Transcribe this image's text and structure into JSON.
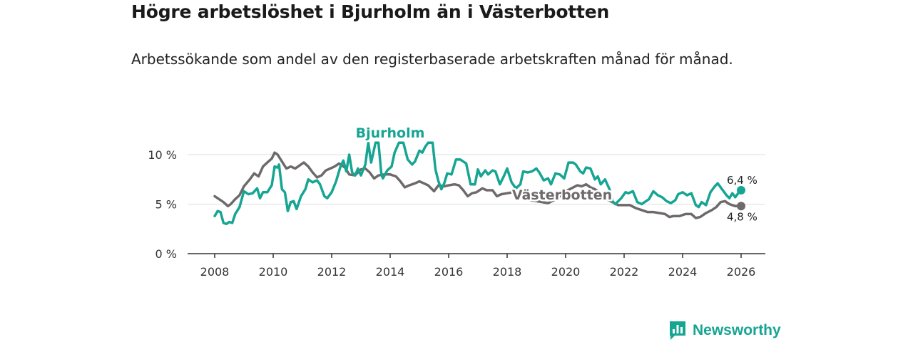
{
  "title": "Högre arbetslöshet i Bjurholm än i Västerbotten",
  "subtitle": "Arbetssökande som andel av den registerbaserade arbetskraften månad för månad.",
  "brand": {
    "name": "Newsworthy",
    "icon": "bar-chart-icon"
  },
  "colors": {
    "bjurholm": "#17a593",
    "vasterbotten": "#6e6a6b",
    "grid": "#dddddd",
    "axis": "#333333"
  },
  "chart_data": {
    "type": "line",
    "title": "Högre arbetslöshet i Bjurholm än i Västerbotten",
    "xlabel": "",
    "ylabel": "",
    "xlim": [
      2007.5,
      2026.9
    ],
    "ylim": [
      0,
      12.5
    ],
    "x_ticks": [
      2008,
      2010,
      2012,
      2014,
      2016,
      2018,
      2020,
      2022,
      2024,
      2026
    ],
    "y_ticks": [
      0,
      5,
      10
    ],
    "y_tick_labels": [
      "0 %",
      "5 %",
      "10 %"
    ],
    "grid": true,
    "series": [
      {
        "name": "Bjurholm",
        "label": "Bjurholm",
        "color": "#17a593",
        "end_label": "6,4 %",
        "points": [
          [
            2008.0,
            3.8
          ],
          [
            2008.1,
            4.3
          ],
          [
            2008.2,
            4.2
          ],
          [
            2008.3,
            3.1
          ],
          [
            2008.4,
            3.0
          ],
          [
            2008.5,
            3.2
          ],
          [
            2008.6,
            3.1
          ],
          [
            2008.7,
            4.0
          ],
          [
            2008.85,
            4.7
          ],
          [
            2009.0,
            6.3
          ],
          [
            2009.15,
            6.0
          ],
          [
            2009.3,
            6.1
          ],
          [
            2009.45,
            6.6
          ],
          [
            2009.55,
            5.6
          ],
          [
            2009.65,
            6.2
          ],
          [
            2009.8,
            6.2
          ],
          [
            2009.95,
            6.9
          ],
          [
            2010.05,
            8.8
          ],
          [
            2010.15,
            8.7
          ],
          [
            2010.2,
            9.0
          ],
          [
            2010.3,
            6.5
          ],
          [
            2010.4,
            6.2
          ],
          [
            2010.5,
            4.3
          ],
          [
            2010.6,
            5.2
          ],
          [
            2010.7,
            5.3
          ],
          [
            2010.8,
            4.5
          ],
          [
            2010.95,
            5.8
          ],
          [
            2011.1,
            6.5
          ],
          [
            2011.2,
            7.5
          ],
          [
            2011.35,
            7.2
          ],
          [
            2011.5,
            7.4
          ],
          [
            2011.6,
            7.0
          ],
          [
            2011.75,
            5.8
          ],
          [
            2011.85,
            5.6
          ],
          [
            2012.0,
            6.2
          ],
          [
            2012.15,
            7.3
          ],
          [
            2012.3,
            8.8
          ],
          [
            2012.4,
            9.4
          ],
          [
            2012.5,
            8.3
          ],
          [
            2012.6,
            10.0
          ],
          [
            2012.7,
            8.2
          ],
          [
            2012.8,
            7.9
          ],
          [
            2012.9,
            8.6
          ],
          [
            2013.0,
            7.9
          ],
          [
            2013.15,
            9.0
          ],
          [
            2013.25,
            11.2
          ],
          [
            2013.35,
            9.2
          ],
          [
            2013.5,
            11.2
          ],
          [
            2013.6,
            11.2
          ],
          [
            2013.7,
            8.0
          ],
          [
            2013.75,
            7.6
          ],
          [
            2013.9,
            8.4
          ],
          [
            2014.05,
            8.8
          ],
          [
            2014.15,
            10.2
          ],
          [
            2014.3,
            11.2
          ],
          [
            2014.45,
            11.2
          ],
          [
            2014.6,
            9.5
          ],
          [
            2014.75,
            9.0
          ],
          [
            2014.85,
            9.3
          ],
          [
            2015.0,
            10.4
          ],
          [
            2015.1,
            10.2
          ],
          [
            2015.2,
            10.8
          ],
          [
            2015.3,
            11.2
          ],
          [
            2015.45,
            11.2
          ],
          [
            2015.55,
            8.5
          ],
          [
            2015.65,
            7.3
          ],
          [
            2015.75,
            6.5
          ],
          [
            2015.85,
            7.1
          ],
          [
            2015.95,
            8.1
          ],
          [
            2016.1,
            8.0
          ],
          [
            2016.25,
            9.5
          ],
          [
            2016.4,
            9.5
          ],
          [
            2016.5,
            9.3
          ],
          [
            2016.6,
            9.1
          ],
          [
            2016.75,
            7.0
          ],
          [
            2016.9,
            7.0
          ],
          [
            2017.0,
            8.5
          ],
          [
            2017.1,
            7.8
          ],
          [
            2017.25,
            8.4
          ],
          [
            2017.35,
            8.0
          ],
          [
            2017.5,
            8.4
          ],
          [
            2017.6,
            8.3
          ],
          [
            2017.75,
            7.0
          ],
          [
            2017.9,
            7.9
          ],
          [
            2018.0,
            8.6
          ],
          [
            2018.15,
            7.2
          ],
          [
            2018.3,
            6.6
          ],
          [
            2018.45,
            7.0
          ],
          [
            2018.55,
            8.3
          ],
          [
            2018.7,
            8.2
          ],
          [
            2018.85,
            8.3
          ],
          [
            2019.0,
            8.6
          ],
          [
            2019.1,
            8.2
          ],
          [
            2019.25,
            7.4
          ],
          [
            2019.4,
            7.6
          ],
          [
            2019.5,
            7.0
          ],
          [
            2019.65,
            8.1
          ],
          [
            2019.8,
            8.0
          ],
          [
            2019.95,
            7.6
          ],
          [
            2020.1,
            9.2
          ],
          [
            2020.25,
            9.2
          ],
          [
            2020.35,
            9.0
          ],
          [
            2020.5,
            8.3
          ],
          [
            2020.6,
            8.1
          ],
          [
            2020.7,
            8.7
          ],
          [
            2020.85,
            8.6
          ],
          [
            2021.0,
            7.5
          ],
          [
            2021.1,
            7.8
          ],
          [
            2021.2,
            7.0
          ],
          [
            2021.35,
            7.5
          ],
          [
            2021.5,
            6.5
          ],
          [
            2021.6,
            5.3
          ],
          [
            2021.7,
            5.0
          ],
          [
            2021.8,
            5.3
          ],
          [
            2021.9,
            5.6
          ],
          [
            2022.05,
            6.2
          ],
          [
            2022.15,
            6.1
          ],
          [
            2022.3,
            6.3
          ],
          [
            2022.45,
            5.2
          ],
          [
            2022.6,
            5.0
          ],
          [
            2022.7,
            5.2
          ],
          [
            2022.85,
            5.5
          ],
          [
            2023.0,
            6.3
          ],
          [
            2023.15,
            5.9
          ],
          [
            2023.3,
            5.7
          ],
          [
            2023.45,
            5.3
          ],
          [
            2023.6,
            5.1
          ],
          [
            2023.75,
            5.4
          ],
          [
            2023.85,
            6.0
          ],
          [
            2024.0,
            6.2
          ],
          [
            2024.15,
            5.9
          ],
          [
            2024.3,
            6.1
          ],
          [
            2024.45,
            4.9
          ],
          [
            2024.55,
            4.7
          ],
          [
            2024.65,
            5.2
          ],
          [
            2024.8,
            4.9
          ],
          [
            2024.95,
            6.2
          ],
          [
            2025.1,
            6.8
          ],
          [
            2025.2,
            7.1
          ],
          [
            2025.35,
            6.5
          ],
          [
            2025.5,
            5.9
          ],
          [
            2025.6,
            5.6
          ],
          [
            2025.7,
            6.1
          ],
          [
            2025.8,
            5.7
          ],
          [
            2025.9,
            6.1
          ],
          [
            2026.0,
            6.4
          ]
        ]
      },
      {
        "name": "Västerbotten",
        "label": "Västerbotten",
        "color": "#6e6a6b",
        "end_label": "4,8 %",
        "points": [
          [
            2008.0,
            5.8
          ],
          [
            2008.15,
            5.5
          ],
          [
            2008.3,
            5.2
          ],
          [
            2008.45,
            4.8
          ],
          [
            2008.55,
            5.0
          ],
          [
            2008.7,
            5.5
          ],
          [
            2008.85,
            5.9
          ],
          [
            2009.0,
            6.8
          ],
          [
            2009.2,
            7.5
          ],
          [
            2009.35,
            8.1
          ],
          [
            2009.5,
            7.8
          ],
          [
            2009.65,
            8.8
          ],
          [
            2009.8,
            9.2
          ],
          [
            2009.95,
            9.6
          ],
          [
            2010.05,
            10.2
          ],
          [
            2010.15,
            10.0
          ],
          [
            2010.3,
            9.3
          ],
          [
            2010.45,
            8.6
          ],
          [
            2010.6,
            8.8
          ],
          [
            2010.75,
            8.6
          ],
          [
            2010.9,
            8.9
          ],
          [
            2011.05,
            9.2
          ],
          [
            2011.2,
            8.8
          ],
          [
            2011.35,
            8.2
          ],
          [
            2011.5,
            7.7
          ],
          [
            2011.65,
            7.9
          ],
          [
            2011.8,
            8.4
          ],
          [
            2011.95,
            8.6
          ],
          [
            2012.1,
            8.8
          ],
          [
            2012.25,
            9.1
          ],
          [
            2012.45,
            8.7
          ],
          [
            2012.6,
            8.0
          ],
          [
            2012.8,
            7.9
          ],
          [
            2013.0,
            8.5
          ],
          [
            2013.15,
            8.6
          ],
          [
            2013.3,
            8.2
          ],
          [
            2013.45,
            7.6
          ],
          [
            2013.6,
            7.9
          ],
          [
            2013.8,
            8.0
          ],
          [
            2014.0,
            8.0
          ],
          [
            2014.2,
            7.8
          ],
          [
            2014.35,
            7.3
          ],
          [
            2014.5,
            6.7
          ],
          [
            2014.65,
            6.9
          ],
          [
            2014.85,
            7.1
          ],
          [
            2015.0,
            7.3
          ],
          [
            2015.15,
            7.1
          ],
          [
            2015.3,
            6.9
          ],
          [
            2015.5,
            6.3
          ],
          [
            2015.65,
            6.9
          ],
          [
            2015.85,
            6.8
          ],
          [
            2016.0,
            6.9
          ],
          [
            2016.2,
            7.0
          ],
          [
            2016.35,
            6.9
          ],
          [
            2016.5,
            6.4
          ],
          [
            2016.65,
            5.8
          ],
          [
            2016.8,
            6.1
          ],
          [
            2016.95,
            6.2
          ],
          [
            2017.15,
            6.6
          ],
          [
            2017.3,
            6.4
          ],
          [
            2017.5,
            6.4
          ],
          [
            2017.65,
            5.8
          ],
          [
            2017.8,
            6.0
          ],
          [
            2018.0,
            6.1
          ],
          [
            2018.2,
            6.2
          ],
          [
            2018.45,
            6.0
          ],
          [
            2018.6,
            5.7
          ],
          [
            2018.8,
            5.4
          ],
          [
            2019.0,
            5.3
          ],
          [
            2019.2,
            5.2
          ],
          [
            2019.4,
            5.1
          ],
          [
            2019.6,
            5.4
          ],
          [
            2019.8,
            5.8
          ],
          [
            2020.0,
            6.3
          ],
          [
            2020.2,
            6.6
          ],
          [
            2020.4,
            6.9
          ],
          [
            2020.55,
            6.8
          ],
          [
            2020.7,
            7.0
          ],
          [
            2020.85,
            6.7
          ],
          [
            2021.0,
            6.5
          ],
          [
            2021.2,
            6.1
          ],
          [
            2021.4,
            5.5
          ],
          [
            2021.6,
            5.2
          ],
          [
            2021.8,
            4.9
          ],
          [
            2022.0,
            4.9
          ],
          [
            2022.2,
            4.9
          ],
          [
            2022.4,
            4.6
          ],
          [
            2022.6,
            4.4
          ],
          [
            2022.8,
            4.2
          ],
          [
            2023.0,
            4.2
          ],
          [
            2023.2,
            4.1
          ],
          [
            2023.4,
            4.0
          ],
          [
            2023.55,
            3.7
          ],
          [
            2023.7,
            3.8
          ],
          [
            2023.9,
            3.8
          ],
          [
            2024.1,
            4.0
          ],
          [
            2024.3,
            4.0
          ],
          [
            2024.45,
            3.6
          ],
          [
            2024.6,
            3.7
          ],
          [
            2024.8,
            4.1
          ],
          [
            2025.0,
            4.4
          ],
          [
            2025.15,
            4.7
          ],
          [
            2025.3,
            5.2
          ],
          [
            2025.45,
            5.3
          ],
          [
            2025.6,
            5.0
          ],
          [
            2025.8,
            4.8
          ],
          [
            2026.0,
            4.8
          ]
        ]
      }
    ]
  }
}
